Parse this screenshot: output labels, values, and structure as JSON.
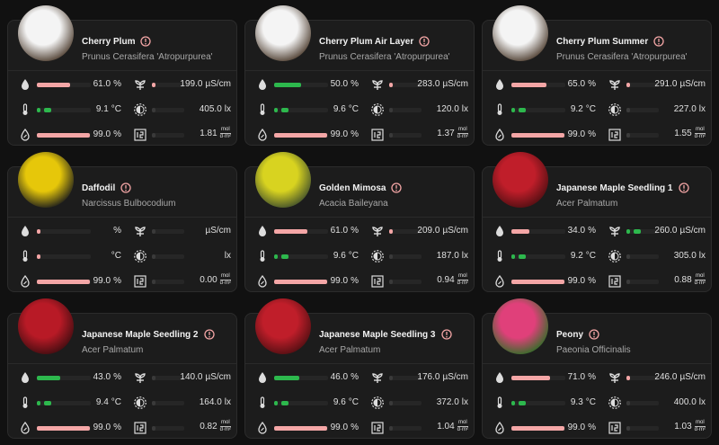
{
  "cards": [
    {
      "name": "Cherry Plum",
      "species": "Prunus Cerasifera 'Atropurpurea'",
      "moisture": {
        "value": "61.0",
        "unit": "%",
        "color": "#f4a6a6"
      },
      "conductivity": {
        "value": "199.0",
        "unit": "µS/cm",
        "color": "#f4a6a6"
      },
      "temperature": {
        "value": "9.1",
        "unit": "°C",
        "color": "#2db84d"
      },
      "illuminance": {
        "value": "405.0",
        "unit": "lx",
        "color": "#3a3a3a"
      },
      "humidity": {
        "value": "99.0",
        "unit": "%",
        "color": "#f4a6a6"
      },
      "dli": {
        "value": "1.81",
        "unit_num": "mol",
        "unit_den": "d·m²",
        "color": "#3a3a3a"
      }
    },
    {
      "name": "Cherry Plum Air Layer",
      "species": "Prunus Cerasifera 'Atropurpurea'",
      "moisture": {
        "value": "50.0",
        "unit": "%",
        "color": "#2db84d"
      },
      "conductivity": {
        "value": "283.0",
        "unit": "µS/cm",
        "color": "#f4a6a6"
      },
      "temperature": {
        "value": "9.6",
        "unit": "°C",
        "color": "#2db84d"
      },
      "illuminance": {
        "value": "120.0",
        "unit": "lx",
        "color": "#3a3a3a"
      },
      "humidity": {
        "value": "99.0",
        "unit": "%",
        "color": "#f4a6a6"
      },
      "dli": {
        "value": "1.37",
        "unit_num": "mol",
        "unit_den": "d·m²",
        "color": "#3a3a3a"
      }
    },
    {
      "name": "Cherry Plum Summer",
      "species": "Prunus Cerasifera 'Atropurpurea'",
      "moisture": {
        "value": "65.0",
        "unit": "%",
        "color": "#f4a6a6"
      },
      "conductivity": {
        "value": "291.0",
        "unit": "µS/cm",
        "color": "#f4a6a6"
      },
      "temperature": {
        "value": "9.2",
        "unit": "°C",
        "color": "#2db84d"
      },
      "illuminance": {
        "value": "227.0",
        "unit": "lx",
        "color": "#3a3a3a"
      },
      "humidity": {
        "value": "99.0",
        "unit": "%",
        "color": "#f4a6a6"
      },
      "dli": {
        "value": "1.55",
        "unit_num": "mol",
        "unit_den": "d·m²",
        "color": "#3a3a3a"
      }
    },
    {
      "name": "Daffodil",
      "species": "Narcissus Bulbocodium",
      "moisture": {
        "unit": "%",
        "color": "#f4a6a6"
      },
      "conductivity": {
        "unit": "µS/cm",
        "color": "#3a3a3a"
      },
      "temperature": {
        "unit": "°C",
        "color": "#f4a6a6"
      },
      "illuminance": {
        "unit": "lx",
        "color": "#3a3a3a"
      },
      "humidity": {
        "value": "99.0",
        "unit": "%",
        "color": "#f4a6a6"
      },
      "dli": {
        "value": "0.00",
        "unit_num": "mol",
        "unit_den": "d·m²",
        "color": "#3a3a3a"
      }
    },
    {
      "name": "Golden Mimosa",
      "species": "Acacia Baileyana",
      "moisture": {
        "value": "61.0",
        "unit": "%",
        "color": "#f4a6a6"
      },
      "conductivity": {
        "value": "209.0",
        "unit": "µS/cm",
        "color": "#f4a6a6"
      },
      "temperature": {
        "value": "9.6",
        "unit": "°C",
        "color": "#2db84d"
      },
      "illuminance": {
        "value": "187.0",
        "unit": "lx",
        "color": "#3a3a3a"
      },
      "humidity": {
        "value": "99.0",
        "unit": "%",
        "color": "#f4a6a6"
      },
      "dli": {
        "value": "0.94",
        "unit_num": "mol",
        "unit_den": "d·m²",
        "color": "#3a3a3a"
      }
    },
    {
      "name": "Japanese Maple Seedling 1",
      "species": "Acer Palmatum",
      "moisture": {
        "value": "34.0",
        "unit": "%",
        "color": "#f4a6a6"
      },
      "conductivity": {
        "value": "260.0",
        "unit": "µS/cm",
        "color": "#2db84d"
      },
      "temperature": {
        "value": "9.2",
        "unit": "°C",
        "color": "#2db84d"
      },
      "illuminance": {
        "value": "305.0",
        "unit": "lx",
        "color": "#3a3a3a"
      },
      "humidity": {
        "value": "99.0",
        "unit": "%",
        "color": "#f4a6a6"
      },
      "dli": {
        "value": "0.88",
        "unit_num": "mol",
        "unit_den": "d·m²",
        "color": "#3a3a3a"
      }
    },
    {
      "name": "Japanese Maple Seedling 2",
      "species": "Acer Palmatum",
      "moisture": {
        "value": "43.0",
        "unit": "%",
        "color": "#2db84d"
      },
      "conductivity": {
        "value": "140.0",
        "unit": "µS/cm",
        "color": "#3a3a3a"
      },
      "temperature": {
        "value": "9.4",
        "unit": "°C",
        "color": "#2db84d"
      },
      "illuminance": {
        "value": "164.0",
        "unit": "lx",
        "color": "#3a3a3a"
      },
      "humidity": {
        "value": "99.0",
        "unit": "%",
        "color": "#f4a6a6"
      },
      "dli": {
        "value": "0.82",
        "unit_num": "mol",
        "unit_den": "d·m²",
        "color": "#3a3a3a"
      }
    },
    {
      "name": "Japanese Maple Seedling 3",
      "species": "Acer Palmatum",
      "moisture": {
        "value": "46.0",
        "unit": "%",
        "color": "#2db84d"
      },
      "conductivity": {
        "value": "176.0",
        "unit": "µS/cm",
        "color": "#3a3a3a"
      },
      "temperature": {
        "value": "9.6",
        "unit": "°C",
        "color": "#2db84d"
      },
      "illuminance": {
        "value": "372.0",
        "unit": "lx",
        "color": "#3a3a3a"
      },
      "humidity": {
        "value": "99.0",
        "unit": "%",
        "color": "#f4a6a6"
      },
      "dli": {
        "value": "1.04",
        "unit_num": "mol",
        "unit_den": "d·m²",
        "color": "#3a3a3a"
      }
    },
    {
      "name": "Peony",
      "species": "Paeonia Officinalis",
      "moisture": {
        "value": "71.0",
        "unit": "%",
        "color": "#f4a6a6"
      },
      "conductivity": {
        "value": "246.0",
        "unit": "µS/cm",
        "color": "#f4a6a6"
      },
      "temperature": {
        "value": "9.3",
        "unit": "°C",
        "color": "#2db84d"
      },
      "illuminance": {
        "value": "400.0",
        "unit": "lx",
        "color": "#3a3a3a"
      },
      "humidity": {
        "value": "99.0",
        "unit": "%",
        "color": "#f4a6a6"
      },
      "dli": {
        "value": "1.03",
        "unit_num": "mol",
        "unit_den": "d·m²",
        "color": "#3a3a3a"
      }
    }
  ]
}
